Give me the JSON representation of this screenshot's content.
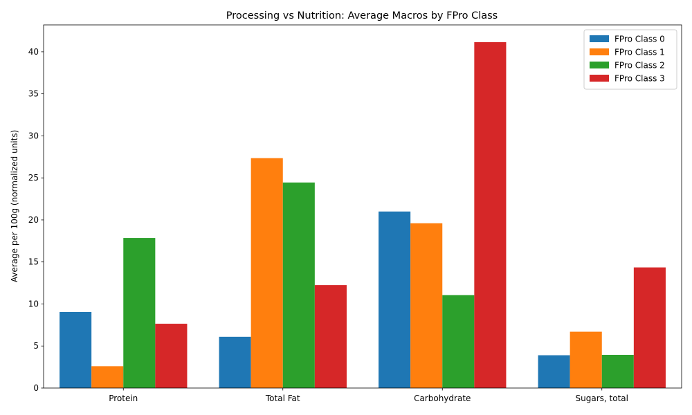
{
  "chart_data": {
    "type": "bar",
    "title": "Processing vs Nutrition: Average Macros by FPro Class",
    "xlabel": "",
    "ylabel": "Average per 100g (normalized units)",
    "categories": [
      "Protein",
      "Total Fat",
      "Carbohydrate",
      "Sugars, total"
    ],
    "ylim": [
      0,
      43.2
    ],
    "yticks": [
      0,
      5,
      10,
      15,
      20,
      25,
      30,
      35,
      40
    ],
    "grid": false,
    "legend_position": "top-right",
    "series": [
      {
        "name": "FPro Class 0",
        "color": "#1f77b4",
        "values": [
          9.05,
          6.1,
          21.0,
          3.9
        ]
      },
      {
        "name": "FPro Class 1",
        "color": "#ff7f0e",
        "values": [
          2.6,
          27.35,
          19.6,
          6.7
        ]
      },
      {
        "name": "FPro Class 2",
        "color": "#2ca02c",
        "values": [
          17.85,
          24.45,
          11.05,
          3.95
        ]
      },
      {
        "name": "FPro Class 3",
        "color": "#d62728",
        "values": [
          7.65,
          12.25,
          41.15,
          14.35
        ]
      }
    ]
  }
}
